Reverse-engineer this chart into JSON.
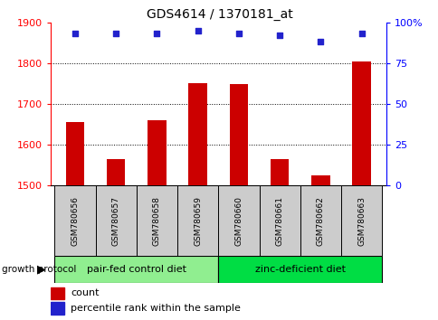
{
  "title": "GDS4614 / 1370181_at",
  "samples": [
    "GSM780656",
    "GSM780657",
    "GSM780658",
    "GSM780659",
    "GSM780660",
    "GSM780661",
    "GSM780662",
    "GSM780663"
  ],
  "counts": [
    1655,
    1565,
    1660,
    1750,
    1748,
    1565,
    1525,
    1805
  ],
  "percentile_ranks": [
    93,
    93,
    93,
    95,
    93,
    92,
    88,
    93
  ],
  "ylim_left": [
    1500,
    1900
  ],
  "ylim_right": [
    0,
    100
  ],
  "yticks_left": [
    1500,
    1600,
    1700,
    1800,
    1900
  ],
  "yticks_right": [
    0,
    25,
    50,
    75,
    100
  ],
  "group1_label": "pair-fed control diet",
  "group1_indices": [
    0,
    1,
    2,
    3
  ],
  "group2_label": "zinc-deficient diet",
  "group2_indices": [
    4,
    5,
    6,
    7
  ],
  "group_protocol_label": "growth protocol",
  "bar_color": "#cc0000",
  "dot_color": "#2222cc",
  "group1_color": "#90ee90",
  "group2_color": "#00dd44",
  "bg_color": "#cccccc",
  "legend_count_label": "count",
  "legend_pct_label": "percentile rank within the sample",
  "bar_bottom": 1500,
  "bar_width": 0.45
}
